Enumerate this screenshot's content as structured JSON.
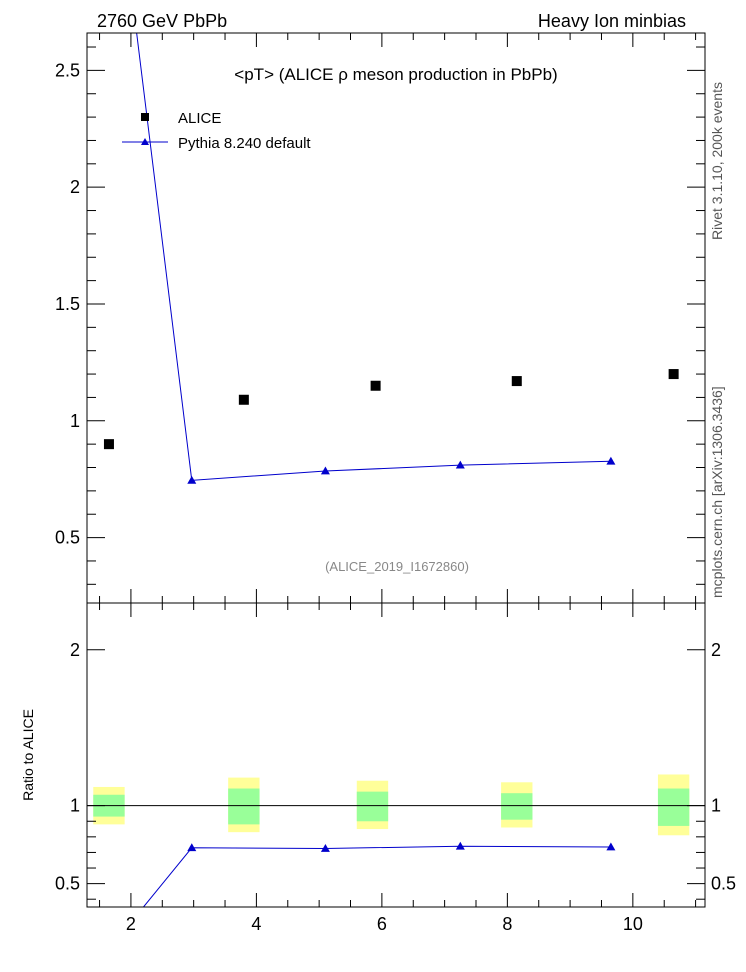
{
  "header": {
    "left": "2760 GeV PbPb",
    "right": "Heavy Ion minbias"
  },
  "side_labels": {
    "rivet": "Rivet 3.1.10,  200k events",
    "mcplots": "mcplots.cern.ch [arXiv:1306.3436]"
  },
  "chart_data": [
    {
      "type": "scatter",
      "panel": "main",
      "title": "<pT> (ALICE ρ meson production in PbPb)",
      "annotation": "(ALICE_2019_I1672860)",
      "xlabel": "",
      "ylabel": "",
      "xlim": [
        1.3,
        11.15
      ],
      "ylim": [
        0.22,
        2.66
      ],
      "y_ticks": [
        "0.5",
        "1",
        "1.5",
        "2",
        "2.5"
      ],
      "legend_position": "top-left",
      "series": [
        {
          "name": "ALICE",
          "marker": "square",
          "color": "#000000",
          "x": [
            1.65,
            3.8,
            5.9,
            8.15,
            10.65
          ],
          "y": [
            0.9,
            1.09,
            1.15,
            1.17,
            1.2
          ]
        },
        {
          "name": "Pythia 8.240 default",
          "marker": "triangle",
          "line": true,
          "color": "#0000cc",
          "x": [
            2.97,
            5.1,
            7.25,
            9.65
          ],
          "y": [
            0.745,
            0.785,
            0.81,
            0.827
          ],
          "line_start": [
            2.05,
            2.75
          ]
        }
      ]
    },
    {
      "type": "scatter",
      "panel": "ratio",
      "ylabel": "Ratio to ALICE",
      "xlim": [
        1.3,
        11.15
      ],
      "ylim": [
        0.35,
        2.3
      ],
      "x_ticks": [
        "2",
        "4",
        "6",
        "8",
        "10"
      ],
      "y_ticks": [
        "0.5",
        "1",
        "2"
      ],
      "reference_line": 1,
      "bands": [
        {
          "x": [
            1.4,
            1.9
          ],
          "inner": [
            0.93,
            1.07
          ],
          "outer": [
            0.88,
            1.12
          ]
        },
        {
          "x": [
            3.55,
            4.05
          ],
          "inner": [
            0.88,
            1.11
          ],
          "outer": [
            0.83,
            1.18
          ]
        },
        {
          "x": [
            5.6,
            6.1
          ],
          "inner": [
            0.9,
            1.09
          ],
          "outer": [
            0.85,
            1.16
          ]
        },
        {
          "x": [
            7.9,
            8.4
          ],
          "inner": [
            0.91,
            1.08
          ],
          "outer": [
            0.86,
            1.15
          ]
        },
        {
          "x": [
            10.4,
            10.9
          ],
          "inner": [
            0.87,
            1.11
          ],
          "outer": [
            0.81,
            1.2
          ]
        }
      ],
      "series": [
        {
          "name": "Pythia 8.240 default",
          "marker": "triangle",
          "line": true,
          "color": "#0000cc",
          "x": [
            2.97,
            5.1,
            7.25,
            9.65
          ],
          "y": [
            0.73,
            0.725,
            0.74,
            0.735
          ],
          "line_start": [
            2.2,
            0.35
          ]
        }
      ]
    }
  ]
}
